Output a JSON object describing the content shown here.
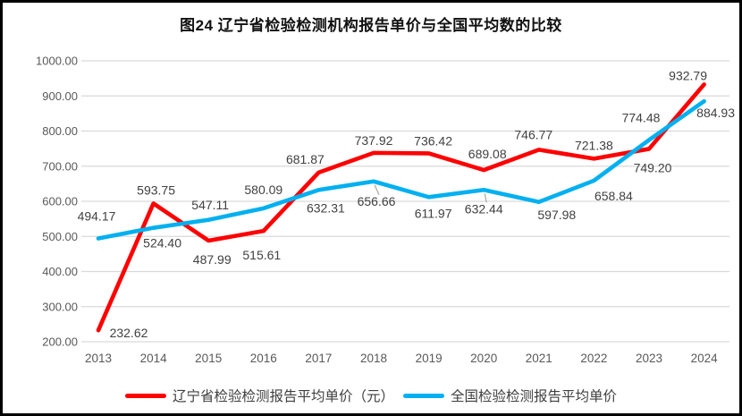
{
  "page": {
    "background": "#ffffff",
    "frame_border_color": "#000000"
  },
  "chart_data": {
    "type": "line",
    "title": "图24 辽宁省检验检测机构报告单价与全国平均数的比较",
    "categories": [
      "2013",
      "2014",
      "2015",
      "2016",
      "2017",
      "2018",
      "2019",
      "2020",
      "2021",
      "2022",
      "2023",
      "2024"
    ],
    "series": [
      {
        "name": "辽宁省检验检测报告平均单价（元）",
        "color": "#fe0000",
        "values": [
          232.62,
          593.75,
          487.99,
          515.61,
          681.87,
          737.92,
          736.42,
          689.08,
          746.77,
          721.38,
          749.2,
          932.79
        ],
        "label_offsets": [
          [
            34,
            3
          ],
          [
            3,
            -15
          ],
          [
            4,
            21
          ],
          [
            -2,
            27
          ],
          [
            -15,
            -15
          ],
          [
            0,
            -14
          ],
          [
            5,
            -14
          ],
          [
            4,
            -18
          ],
          [
            -6,
            -17
          ],
          [
            0,
            -15
          ],
          [
            4,
            21
          ],
          [
            -18,
            -10
          ]
        ],
        "leader_points": []
      },
      {
        "name": "全国检验检测报告平均单价",
        "color": "#00b0f0",
        "values": [
          494.17,
          524.4,
          547.11,
          580.09,
          632.31,
          656.66,
          611.97,
          632.44,
          597.98,
          658.84,
          774.48,
          884.93
        ],
        "label_offsets": [
          [
            -2,
            -25
          ],
          [
            10,
            17
          ],
          [
            2,
            -17
          ],
          [
            0,
            -21
          ],
          [
            8,
            20
          ],
          [
            3,
            22
          ],
          [
            5,
            18
          ],
          [
            0,
            21
          ],
          [
            20,
            14
          ],
          [
            22,
            17
          ],
          [
            -9,
            -25
          ],
          [
            13,
            13
          ]
        ],
        "leader_points": [
          5,
          7
        ]
      }
    ],
    "y_axis": {
      "min": 200,
      "max": 1000,
      "step": 100,
      "tick_labels": [
        "1000.00",
        "900.00",
        "800.00",
        "700.00",
        "600.00",
        "500.00",
        "400.00",
        "300.00",
        "200.00"
      ]
    },
    "grid": true,
    "legend_position": "bottom",
    "value_label_decimals": 2,
    "colors": {
      "grid_line": "#d9d9d9",
      "axis_text": "#595959",
      "data_label_text": "#404040",
      "leader_line": "#a6a6a6",
      "title_text": "#111111"
    }
  }
}
